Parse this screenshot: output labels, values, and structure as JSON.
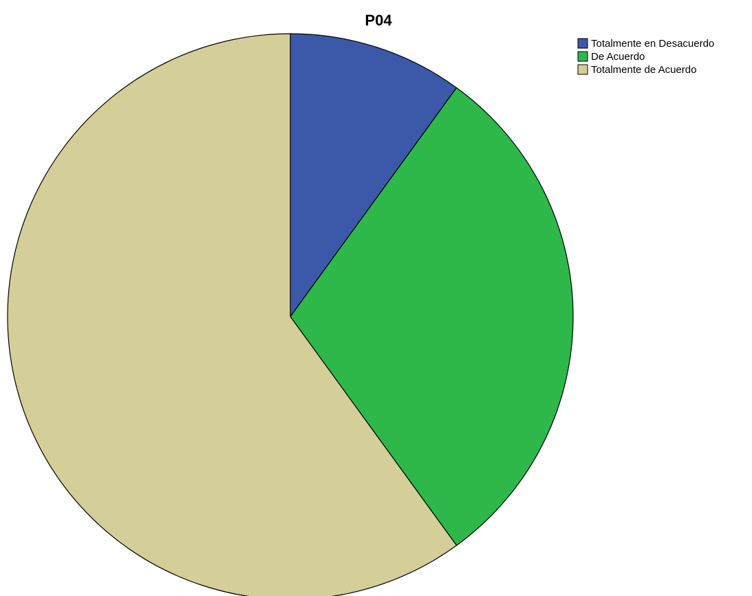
{
  "chart_data": {
    "type": "pie",
    "title": "P04",
    "categories": [
      "Totalmente en Desacuerdo",
      "De Acuerdo",
      "Totalmente de Acuerdo"
    ],
    "values": [
      10,
      30,
      60
    ],
    "unit": "%",
    "colors": [
      "#3c58a8",
      "#2eb84a",
      "#d4ce98"
    ],
    "start_angle": "12 o'clock",
    "direction": "clockwise",
    "legend": {
      "position": "top-right",
      "entries": [
        "Totalmente en Desacuerdo",
        "De Acuerdo",
        "Totalmente de Acuerdo"
      ]
    }
  }
}
